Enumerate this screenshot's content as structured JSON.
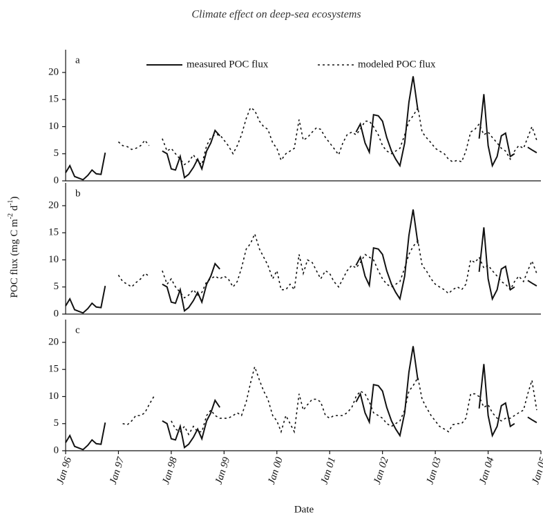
{
  "header": {
    "title": "Climate effect on deep-sea ecosystems"
  },
  "y_label": [
    "POC flux (mg C m",
    "-2",
    " d",
    "-1",
    ")"
  ],
  "x_label": "Date",
  "chart_data": [
    {
      "type": "line",
      "panel": "a",
      "legend": true,
      "xlim": [
        1996,
        2005
      ],
      "ylim": [
        0,
        24.2
      ],
      "yticks": [
        0,
        5,
        10,
        15,
        20
      ],
      "x": [
        1996,
        1996.08,
        1996.17,
        1996.25,
        1996.33,
        1996.42,
        1996.5,
        1996.58,
        1996.67,
        1996.75,
        1996.83,
        1996.92,
        1997,
        1997.08,
        1997.17,
        1997.25,
        1997.33,
        1997.42,
        1997.5,
        1997.58,
        1997.67,
        1997.75,
        1997.83,
        1997.92,
        1998,
        1998.08,
        1998.17,
        1998.25,
        1998.33,
        1998.42,
        1998.5,
        1998.58,
        1998.67,
        1998.75,
        1998.83,
        1998.92,
        1999,
        1999.08,
        1999.17,
        1999.25,
        1999.33,
        1999.42,
        1999.5,
        1999.58,
        1999.67,
        1999.75,
        1999.83,
        1999.92,
        2000,
        2000.08,
        2000.17,
        2000.25,
        2000.33,
        2000.42,
        2000.5,
        2000.58,
        2000.67,
        2000.75,
        2000.83,
        2000.92,
        2001,
        2001.08,
        2001.17,
        2001.25,
        2001.33,
        2001.42,
        2001.5,
        2001.58,
        2001.67,
        2001.75,
        2001.83,
        2001.92,
        2002,
        2002.08,
        2002.17,
        2002.25,
        2002.33,
        2002.42,
        2002.5,
        2002.58,
        2002.67,
        2002.75,
        2002.83,
        2002.92,
        2003,
        2003.08,
        2003.17,
        2003.25,
        2003.33,
        2003.42,
        2003.5,
        2003.58,
        2003.67,
        2003.75,
        2003.83,
        2003.92,
        2004,
        2004.08,
        2004.17,
        2004.25,
        2004.33,
        2004.42,
        2004.5,
        2004.58,
        2004.67,
        2004.75,
        2004.83,
        2004.92
      ],
      "series": [
        {
          "name": "measured POC flux",
          "color": "#111111",
          "dash": "solid",
          "values": [
            1.5,
            2.8,
            0.8,
            0.5,
            0.2,
            1.0,
            2.0,
            1.3,
            1.2,
            5.2,
            null,
            null,
            null,
            null,
            null,
            null,
            null,
            null,
            null,
            null,
            null,
            null,
            5.5,
            5.0,
            2.2,
            2.0,
            4.5,
            0.6,
            1.2,
            2.5,
            4.0,
            2.2,
            5.5,
            7.0,
            9.3,
            8.3,
            null,
            null,
            null,
            null,
            null,
            null,
            null,
            null,
            null,
            null,
            null,
            null,
            null,
            null,
            null,
            null,
            null,
            null,
            null,
            null,
            null,
            null,
            null,
            null,
            null,
            null,
            null,
            null,
            null,
            null,
            9.0,
            10.5,
            7.0,
            5.3,
            12.2,
            12.0,
            11.0,
            8.0,
            5.5,
            4.0,
            2.8,
            7.0,
            14.5,
            19.3,
            13.0,
            null,
            null,
            null,
            null,
            null,
            null,
            null,
            null,
            null,
            null,
            null,
            null,
            null,
            7.8,
            16.0,
            6.5,
            2.8,
            4.5,
            8.3,
            8.8,
            4.5,
            5.0,
            null,
            null,
            6.2,
            5.7,
            5.2
          ]
        },
        {
          "name": "modeled POC flux",
          "color": "#111111",
          "dash": "dotted",
          "values": [
            null,
            null,
            null,
            null,
            null,
            null,
            null,
            null,
            null,
            null,
            null,
            null,
            7.2,
            6.5,
            6.3,
            5.8,
            6.0,
            6.5,
            7.5,
            6.5,
            null,
            null,
            7.8,
            5.5,
            6.0,
            5.0,
            4.0,
            3.0,
            3.5,
            4.8,
            3.5,
            3.0,
            6.5,
            8.0,
            8.5,
            8.5,
            7.5,
            6.5,
            5.0,
            6.5,
            8.5,
            11.5,
            13.5,
            13.0,
            11.0,
            10.0,
            9.5,
            7.0,
            6.0,
            3.8,
            5.0,
            5.5,
            6.0,
            11.3,
            7.5,
            8.0,
            9.0,
            9.8,
            9.5,
            8.0,
            7.0,
            6.0,
            4.8,
            7.0,
            8.5,
            9.0,
            8.5,
            9.5,
            11.0,
            11.0,
            10.0,
            8.5,
            6.5,
            5.5,
            5.0,
            5.5,
            6.0,
            8.5,
            11.0,
            12.0,
            13.5,
            9.0,
            8.0,
            7.0,
            6.0,
            5.5,
            5.0,
            4.0,
            3.5,
            3.8,
            3.5,
            5.5,
            9.0,
            9.5,
            10.5,
            8.5,
            9.0,
            8.0,
            7.0,
            6.0,
            5.5,
            4.0,
            5.5,
            6.5,
            6.0,
            8.0,
            10.0,
            7.5
          ]
        }
      ]
    },
    {
      "type": "line",
      "panel": "b",
      "legend": false,
      "xlim": [
        1996,
        2005
      ],
      "ylim": [
        0,
        24.2
      ],
      "yticks": [
        0,
        5,
        10,
        15,
        20
      ],
      "x": [
        1996,
        1996.08,
        1996.17,
        1996.25,
        1996.33,
        1996.42,
        1996.5,
        1996.58,
        1996.67,
        1996.75,
        1996.83,
        1996.92,
        1997,
        1997.08,
        1997.17,
        1997.25,
        1997.33,
        1997.42,
        1997.5,
        1997.58,
        1997.67,
        1997.75,
        1997.83,
        1997.92,
        1998,
        1998.08,
        1998.17,
        1998.25,
        1998.33,
        1998.42,
        1998.5,
        1998.58,
        1998.67,
        1998.75,
        1998.83,
        1998.92,
        1999,
        1999.08,
        1999.17,
        1999.25,
        1999.33,
        1999.42,
        1999.5,
        1999.58,
        1999.67,
        1999.75,
        1999.83,
        1999.92,
        2000,
        2000.08,
        2000.17,
        2000.25,
        2000.33,
        2000.42,
        2000.5,
        2000.58,
        2000.67,
        2000.75,
        2000.83,
        2000.92,
        2001,
        2001.08,
        2001.17,
        2001.25,
        2001.33,
        2001.42,
        2001.5,
        2001.58,
        2001.67,
        2001.75,
        2001.83,
        2001.92,
        2002,
        2002.08,
        2002.17,
        2002.25,
        2002.33,
        2002.42,
        2002.5,
        2002.58,
        2002.67,
        2002.75,
        2002.83,
        2002.92,
        2003,
        2003.08,
        2003.17,
        2003.25,
        2003.33,
        2003.42,
        2003.5,
        2003.58,
        2003.67,
        2003.75,
        2003.83,
        2003.92,
        2004,
        2004.08,
        2004.17,
        2004.25,
        2004.33,
        2004.42,
        2004.5,
        2004.58,
        2004.67,
        2004.75,
        2004.83,
        2004.92
      ],
      "series": [
        {
          "name": "measured POC flux",
          "color": "#111111",
          "dash": "solid",
          "values": [
            1.5,
            2.8,
            0.8,
            0.5,
            0.2,
            1.0,
            2.0,
            1.3,
            1.2,
            5.2,
            null,
            null,
            null,
            null,
            null,
            null,
            null,
            null,
            null,
            null,
            null,
            null,
            5.5,
            5.0,
            2.2,
            2.0,
            4.5,
            0.6,
            1.2,
            2.5,
            4.0,
            2.2,
            5.5,
            7.0,
            9.3,
            8.3,
            null,
            null,
            null,
            null,
            null,
            null,
            null,
            null,
            null,
            null,
            null,
            null,
            null,
            null,
            null,
            null,
            null,
            null,
            null,
            null,
            null,
            null,
            null,
            null,
            null,
            null,
            null,
            null,
            null,
            null,
            9.0,
            10.5,
            7.0,
            5.3,
            12.2,
            12.0,
            11.0,
            8.0,
            5.5,
            4.0,
            2.8,
            7.0,
            14.5,
            19.3,
            13.0,
            null,
            null,
            null,
            null,
            null,
            null,
            null,
            null,
            null,
            null,
            null,
            null,
            null,
            7.8,
            16.0,
            6.5,
            2.8,
            4.5,
            8.3,
            8.8,
            4.5,
            5.0,
            null,
            null,
            6.2,
            5.7,
            5.2
          ]
        },
        {
          "name": "modeled POC flux",
          "color": "#111111",
          "dash": "dotted",
          "values": [
            null,
            null,
            null,
            null,
            null,
            null,
            null,
            null,
            null,
            null,
            null,
            null,
            7.2,
            6.0,
            5.5,
            5.0,
            5.8,
            6.5,
            7.5,
            7.0,
            null,
            null,
            8.0,
            5.5,
            6.5,
            5.0,
            4.0,
            3.0,
            3.5,
            4.5,
            3.5,
            4.0,
            6.0,
            6.5,
            7.0,
            6.5,
            7.0,
            6.5,
            5.0,
            6.0,
            8.5,
            12.0,
            13.0,
            14.8,
            12.0,
            10.5,
            9.0,
            6.5,
            8.0,
            4.5,
            4.5,
            5.5,
            4.5,
            11.0,
            7.5,
            10.0,
            9.5,
            8.0,
            6.5,
            8.0,
            7.5,
            6.0,
            5.0,
            6.5,
            8.0,
            9.0,
            8.5,
            9.5,
            11.0,
            10.5,
            10.0,
            8.0,
            6.5,
            5.5,
            5.0,
            5.5,
            6.0,
            8.5,
            11.0,
            12.5,
            13.5,
            9.0,
            8.0,
            6.5,
            5.5,
            5.0,
            4.5,
            3.8,
            4.5,
            5.0,
            4.5,
            5.5,
            10.0,
            9.5,
            10.5,
            8.5,
            9.0,
            8.0,
            7.0,
            6.0,
            5.5,
            4.5,
            6.0,
            7.0,
            6.0,
            8.0,
            9.8,
            7.5
          ]
        }
      ]
    },
    {
      "type": "line",
      "panel": "c",
      "legend": false,
      "xlim": [
        1996,
        2005
      ],
      "ylim": [
        0,
        24.2
      ],
      "yticks": [
        0,
        5,
        10,
        15,
        20
      ],
      "xticks": [
        {
          "value": 1996,
          "label": "Jan 96"
        },
        {
          "value": 1997,
          "label": "Jan 97"
        },
        {
          "value": 1998,
          "label": "Jan 98"
        },
        {
          "value": 1999,
          "label": "Jan 99"
        },
        {
          "value": 2000,
          "label": "Jan 00"
        },
        {
          "value": 2001,
          "label": "Jan 01"
        },
        {
          "value": 2002,
          "label": "Jan 02"
        },
        {
          "value": 2003,
          "label": "Jan 03"
        },
        {
          "value": 2004,
          "label": "Jan 04"
        },
        {
          "value": 2005,
          "label": "Jan 05"
        }
      ],
      "x": [
        1996,
        1996.08,
        1996.17,
        1996.25,
        1996.33,
        1996.42,
        1996.5,
        1996.58,
        1996.67,
        1996.75,
        1996.83,
        1996.92,
        1997,
        1997.08,
        1997.17,
        1997.25,
        1997.33,
        1997.42,
        1997.5,
        1997.58,
        1997.67,
        1997.75,
        1997.83,
        1997.92,
        1998,
        1998.08,
        1998.17,
        1998.25,
        1998.33,
        1998.42,
        1998.5,
        1998.58,
        1998.67,
        1998.75,
        1998.83,
        1998.92,
        1999,
        1999.08,
        1999.17,
        1999.25,
        1999.33,
        1999.42,
        1999.5,
        1999.58,
        1999.67,
        1999.75,
        1999.83,
        1999.92,
        2000,
        2000.08,
        2000.17,
        2000.25,
        2000.33,
        2000.42,
        2000.5,
        2000.58,
        2000.67,
        2000.75,
        2000.83,
        2000.92,
        2001,
        2001.08,
        2001.17,
        2001.25,
        2001.33,
        2001.42,
        2001.5,
        2001.58,
        2001.67,
        2001.75,
        2001.83,
        2001.92,
        2002,
        2002.08,
        2002.17,
        2002.25,
        2002.33,
        2002.42,
        2002.5,
        2002.58,
        2002.67,
        2002.75,
        2002.83,
        2002.92,
        2003,
        2003.08,
        2003.17,
        2003.25,
        2003.33,
        2003.42,
        2003.5,
        2003.58,
        2003.67,
        2003.75,
        2003.83,
        2003.92,
        2004,
        2004.08,
        2004.17,
        2004.25,
        2004.33,
        2004.42,
        2004.5,
        2004.58,
        2004.67,
        2004.75,
        2004.83,
        2004.92
      ],
      "series": [
        {
          "name": "measured POC flux",
          "color": "#111111",
          "dash": "solid",
          "values": [
            1.5,
            2.8,
            0.8,
            0.5,
            0.2,
            1.0,
            2.0,
            1.3,
            1.2,
            5.2,
            null,
            null,
            null,
            null,
            null,
            null,
            null,
            null,
            null,
            null,
            null,
            null,
            5.5,
            5.0,
            2.2,
            2.0,
            4.5,
            0.6,
            1.2,
            2.5,
            4.0,
            2.2,
            5.5,
            7.0,
            9.3,
            8.0,
            null,
            null,
            null,
            null,
            null,
            null,
            null,
            null,
            null,
            null,
            null,
            null,
            null,
            null,
            null,
            null,
            null,
            null,
            null,
            null,
            null,
            null,
            null,
            null,
            null,
            null,
            null,
            null,
            null,
            null,
            9.0,
            10.5,
            7.0,
            5.3,
            12.2,
            12.0,
            11.0,
            8.0,
            5.5,
            4.0,
            2.8,
            7.0,
            14.5,
            19.3,
            13.0,
            null,
            null,
            null,
            null,
            null,
            null,
            null,
            null,
            null,
            null,
            null,
            null,
            null,
            7.8,
            16.0,
            6.5,
            2.8,
            4.5,
            8.3,
            8.8,
            4.5,
            5.0,
            null,
            null,
            6.2,
            5.7,
            5.2
          ]
        },
        {
          "name": "modeled POC flux",
          "color": "#111111",
          "dash": "dotted",
          "values": [
            null,
            null,
            null,
            null,
            null,
            null,
            null,
            null,
            null,
            null,
            null,
            null,
            null,
            5.0,
            4.8,
            5.5,
            6.5,
            6.5,
            7.0,
            8.5,
            10.0,
            null,
            null,
            null,
            5.5,
            4.0,
            3.5,
            4.5,
            3.0,
            4.5,
            3.5,
            3.5,
            6.5,
            7.5,
            6.5,
            6.0,
            6.0,
            6.0,
            6.5,
            7.0,
            6.5,
            9.0,
            12.5,
            15.5,
            13.0,
            11.0,
            9.5,
            6.5,
            5.5,
            3.5,
            6.5,
            5.0,
            3.5,
            10.5,
            7.5,
            8.5,
            9.5,
            9.5,
            9.0,
            6.5,
            6.0,
            6.5,
            6.5,
            6.5,
            7.0,
            8.0,
            10.0,
            11.0,
            10.5,
            9.0,
            7.0,
            6.5,
            6.0,
            5.0,
            4.5,
            5.0,
            5.5,
            7.5,
            11.0,
            12.0,
            13.5,
            9.5,
            8.0,
            6.5,
            5.5,
            4.5,
            4.0,
            3.5,
            4.8,
            5.0,
            5.0,
            6.0,
            10.5,
            10.5,
            10.0,
            8.0,
            8.5,
            7.0,
            6.0,
            5.5,
            6.0,
            6.0,
            6.5,
            7.0,
            7.5,
            10.5,
            13.0,
            7.5
          ]
        }
      ]
    }
  ]
}
